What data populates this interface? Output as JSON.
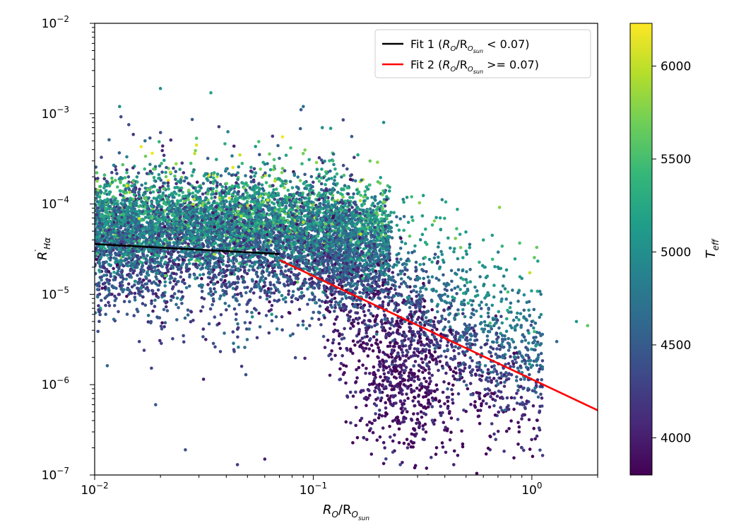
{
  "chart_data": {
    "type": "scatter",
    "xscale": "log",
    "yscale": "log",
    "xlim": [
      0.01,
      2
    ],
    "ylim": [
      1e-07,
      0.01
    ],
    "xticks": [
      {
        "value": 0.01,
        "base": "10",
        "exp": "−2"
      },
      {
        "value": 0.1,
        "base": "10",
        "exp": "−1"
      },
      {
        "value": 1,
        "base": "10",
        "exp": "0"
      }
    ],
    "yticks": [
      {
        "value": 1e-07,
        "base": "10",
        "exp": "−7"
      },
      {
        "value": 1e-06,
        "base": "10",
        "exp": "−6"
      },
      {
        "value": 1e-05,
        "base": "10",
        "exp": "−5"
      },
      {
        "value": 0.0001,
        "base": "10",
        "exp": "−4"
      },
      {
        "value": 0.001,
        "base": "10",
        "exp": "−3"
      },
      {
        "value": 0.01,
        "base": "10",
        "exp": "−2"
      }
    ],
    "xlabel": {
      "main": "R",
      "sub": "O",
      "slash": "/R",
      "sub2": "O",
      "sub3": "sun"
    },
    "ylabel": {
      "main": "R",
      "prime": "′",
      "sub": "Hα"
    },
    "colorbar": {
      "label": {
        "main": "T",
        "sub": "eff"
      },
      "vmin": 3800,
      "vmax": 6230,
      "ticks": [
        4000,
        4500,
        5000,
        5500,
        6000
      ],
      "tick_labels": [
        "4000",
        "4500",
        "5000",
        "5500",
        "6000"
      ],
      "colormap": "viridis",
      "stops": [
        "#440154",
        "#482878",
        "#3e4989",
        "#31688e",
        "#26828e",
        "#1f9e89",
        "#35b779",
        "#6ece58",
        "#b5de2b",
        "#fde725"
      ]
    },
    "series": [
      {
        "name": "Fit 1 (R_O/R_O_sun < 0.07)",
        "legend": {
          "pre": "Fit 1 (",
          "r1": "R",
          "s1": "O",
          "mid": "/R",
          "s2": "O",
          "s3": "sun",
          "post": " < 0.07)"
        },
        "color": "#000000",
        "type": "line",
        "x": [
          0.01,
          0.07
        ],
        "y": [
          3.6e-05,
          2.8e-05
        ]
      },
      {
        "name": "Fit 2 (R_O/R_O_sun >= 0.07)",
        "legend": {
          "pre": "Fit 2 (",
          "r1": "R",
          "s1": "O",
          "mid": "/R",
          "s2": "O",
          "s3": "sun",
          "post": " >= 0.07)"
        },
        "color": "#ff0000",
        "type": "line",
        "x": [
          0.07,
          2.0
        ],
        "y": [
          2.4e-05,
          5.2e-07
        ]
      }
    ],
    "scatter_points": [
      [
        0.012,
        6e-05,
        4600
      ],
      [
        0.013,
        4.5e-05,
        4300
      ],
      [
        0.014,
        8e-05,
        5000
      ],
      [
        0.015,
        3e-05,
        4200
      ],
      [
        0.016,
        0.00012,
        5100
      ],
      [
        0.011,
        2e-05,
        4100
      ],
      [
        0.012,
        1e-05,
        4000
      ],
      [
        0.018,
        6.5e-05,
        4700
      ],
      [
        0.02,
        0.0019,
        5000
      ],
      [
        0.021,
        5e-05,
        4500
      ],
      [
        0.022,
        9e-05,
        5200
      ],
      [
        0.024,
        2.5e-05,
        4300
      ],
      [
        0.025,
        0.00015,
        5300
      ],
      [
        0.027,
        7e-05,
        4900
      ],
      [
        0.03,
        4e-05,
        4400
      ],
      [
        0.032,
        0.00011,
        5000
      ],
      [
        0.034,
        0.0017,
        5200
      ],
      [
        0.035,
        6e-05,
        4800
      ],
      [
        0.038,
        3.5e-05,
        4300
      ],
      [
        0.04,
        0.00013,
        5100
      ],
      [
        0.042,
        8e-05,
        5000
      ],
      [
        0.045,
        5e-05,
        4600
      ],
      [
        0.048,
        2e-05,
        4200
      ],
      [
        0.05,
        0.00016,
        5400
      ],
      [
        0.055,
        7.5e-05,
        4900
      ],
      [
        0.06,
        4.5e-05,
        4500
      ],
      [
        0.065,
        0.00012,
        5100
      ],
      [
        0.07,
        0.00032,
        4600
      ],
      [
        0.075,
        9e-05,
        5000
      ],
      [
        0.08,
        6e-05,
        4800
      ],
      [
        0.085,
        3e-05,
        4400
      ],
      [
        0.09,
        0.0012,
        4700
      ],
      [
        0.095,
        0.0001,
        5100
      ],
      [
        0.1,
        5.5e-05,
        4700
      ],
      [
        0.11,
        0.0007,
        5000
      ],
      [
        0.12,
        8e-05,
        5000
      ],
      [
        0.13,
        4e-05,
        4600
      ],
      [
        0.14,
        2.5e-05,
        4400
      ],
      [
        0.15,
        6e-05,
        4900
      ],
      [
        0.16,
        0.00035,
        5200
      ],
      [
        0.17,
        0.00012,
        5700
      ],
      [
        0.18,
        3e-05,
        4700
      ],
      [
        0.2,
        1.5e-05,
        4500
      ],
      [
        0.21,
        0.0008,
        5000
      ],
      [
        0.22,
        5e-06,
        4100
      ],
      [
        0.24,
        2e-06,
        3900
      ],
      [
        0.26,
        1e-06,
        3850
      ],
      [
        0.28,
        3e-06,
        4000
      ],
      [
        0.3,
        8e-06,
        4300
      ],
      [
        0.32,
        1.5e-05,
        4600
      ],
      [
        0.35,
        4e-06,
        4100
      ],
      [
        0.38,
        2e-05,
        4900
      ],
      [
        0.4,
        1e-05,
        4700
      ],
      [
        0.45,
        6e-06,
        4300
      ],
      [
        0.5,
        3e-05,
        5100
      ],
      [
        0.55,
        1.2e-05,
        4800
      ],
      [
        0.6,
        4e-05,
        5200
      ],
      [
        0.7,
        2e-05,
        5000
      ],
      [
        0.8,
        8e-06,
        4700
      ],
      [
        0.9,
        1.5e-05,
        5000
      ],
      [
        1.0,
        5e-06,
        4500
      ],
      [
        1.1,
        1e-05,
        4800
      ],
      [
        1.3,
        3e-06,
        4600
      ],
      [
        1.6,
        5e-06,
        5100
      ],
      [
        1.8,
        4.5e-06,
        5600
      ],
      [
        0.013,
        0.0012,
        5000
      ],
      [
        0.017,
        0.0005,
        4700
      ],
      [
        0.016,
        3e-06,
        4300
      ],
      [
        0.019,
        6e-07,
        4500
      ],
      [
        0.026,
        1.9e-07,
        4400
      ],
      [
        0.045,
        1.3e-07,
        4200
      ],
      [
        0.06,
        1.5e-07,
        4000
      ],
      [
        0.25,
        1.3e-07,
        4300
      ],
      [
        0.27,
        2e-07,
        4100
      ],
      [
        0.9,
        2e-07,
        4300
      ]
    ],
    "cloud_seed": 12345,
    "cloud_count": 9000
  },
  "legend": {
    "position": "upper-right"
  },
  "layout": {
    "grid": false
  }
}
